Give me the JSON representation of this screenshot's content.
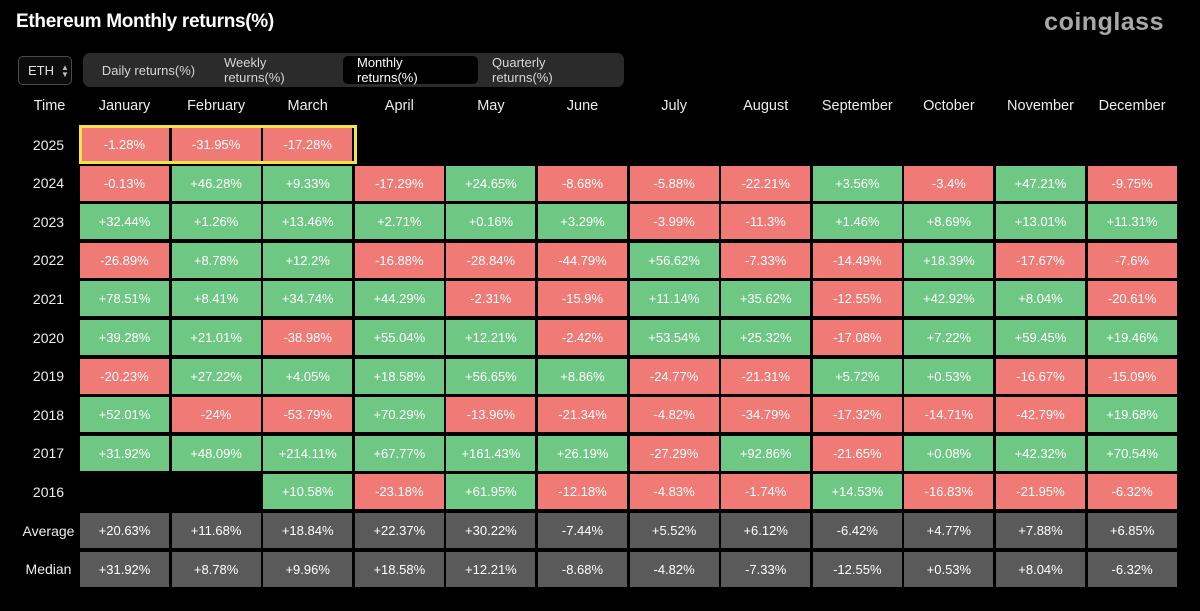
{
  "title": "Ethereum Monthly returns(%)",
  "brand": "coinglass",
  "asset": {
    "selected": "ETH",
    "icon": "chevron-updown-icon"
  },
  "tabs": [
    {
      "label": "Daily returns(%)",
      "active": false
    },
    {
      "label": "Weekly returns(%)",
      "active": false
    },
    {
      "label": "Monthly returns(%)",
      "active": true
    },
    {
      "label": "Quarterly returns(%)",
      "active": false
    }
  ],
  "colors": {
    "positive": "#6fc784",
    "negative": "#ef7a76",
    "stat": "#5a5a5a",
    "highlight": "#f2e34a"
  },
  "table": {
    "time_header": "Time",
    "months": [
      "January",
      "February",
      "March",
      "April",
      "May",
      "June",
      "July",
      "August",
      "September",
      "October",
      "November",
      "December"
    ],
    "rows": [
      {
        "label": "2025",
        "values": [
          "-1.28%",
          "-31.95%",
          "-17.28%",
          null,
          null,
          null,
          null,
          null,
          null,
          null,
          null,
          null
        ]
      },
      {
        "label": "2024",
        "values": [
          "-0.13%",
          "+46.28%",
          "+9.33%",
          "-17.29%",
          "+24.65%",
          "-8.68%",
          "-5.88%",
          "-22.21%",
          "+3.56%",
          "-3.4%",
          "+47.21%",
          "-9.75%"
        ]
      },
      {
        "label": "2023",
        "values": [
          "+32.44%",
          "+1.26%",
          "+13.46%",
          "+2.71%",
          "+0.16%",
          "+3.29%",
          "-3.99%",
          "-11.3%",
          "+1.46%",
          "+8.69%",
          "+13.01%",
          "+11.31%"
        ]
      },
      {
        "label": "2022",
        "values": [
          "-26.89%",
          "+8.78%",
          "+12.2%",
          "-16.88%",
          "-28.84%",
          "-44.79%",
          "+56.62%",
          "-7.33%",
          "-14.49%",
          "+18.39%",
          "-17.67%",
          "-7.6%"
        ]
      },
      {
        "label": "2021",
        "values": [
          "+78.51%",
          "+8.41%",
          "+34.74%",
          "+44.29%",
          "-2.31%",
          "-15.9%",
          "+11.14%",
          "+35.62%",
          "-12.55%",
          "+42.92%",
          "+8.04%",
          "-20.61%"
        ]
      },
      {
        "label": "2020",
        "values": [
          "+39.28%",
          "+21.01%",
          "-38.98%",
          "+55.04%",
          "+12.21%",
          "-2.42%",
          "+53.54%",
          "+25.32%",
          "-17.08%",
          "+7.22%",
          "+59.45%",
          "+19.46%"
        ]
      },
      {
        "label": "2019",
        "values": [
          "-20.23%",
          "+27.22%",
          "+4.05%",
          "+18.58%",
          "+56.65%",
          "+8.86%",
          "-24.77%",
          "-21.31%",
          "+5.72%",
          "+0.53%",
          "-16.67%",
          "-15.09%"
        ]
      },
      {
        "label": "2018",
        "values": [
          "+52.01%",
          "-24%",
          "-53.79%",
          "+70.29%",
          "-13.96%",
          "-21.34%",
          "-4.82%",
          "-34.79%",
          "-17.32%",
          "-14.71%",
          "-42.79%",
          "+19.68%"
        ]
      },
      {
        "label": "2017",
        "values": [
          "+31.92%",
          "+48.09%",
          "+214.11%",
          "+67.77%",
          "+161.43%",
          "+26.19%",
          "-27.29%",
          "+92.86%",
          "-21.65%",
          "+0.08%",
          "+42.32%",
          "+70.54%"
        ]
      },
      {
        "label": "2016",
        "values": [
          null,
          null,
          "+10.58%",
          "-23.18%",
          "+61.95%",
          "-12.18%",
          "-4.83%",
          "-1.74%",
          "+14.53%",
          "-16.83%",
          "-21.95%",
          "-6.32%"
        ]
      }
    ],
    "average": {
      "label": "Average",
      "values": [
        "+20.63%",
        "+11.68%",
        "+18.84%",
        "+22.37%",
        "+30.22%",
        "-7.44%",
        "+5.52%",
        "+6.12%",
        "-6.42%",
        "+4.77%",
        "+7.88%",
        "+6.85%"
      ]
    },
    "median": {
      "label": "Median",
      "values": [
        "+31.92%",
        "+8.78%",
        "+9.96%",
        "+18.58%",
        "+12.21%",
        "-8.68%",
        "-4.82%",
        "-7.33%",
        "-12.55%",
        "+0.53%",
        "+8.04%",
        "-6.32%"
      ]
    }
  }
}
